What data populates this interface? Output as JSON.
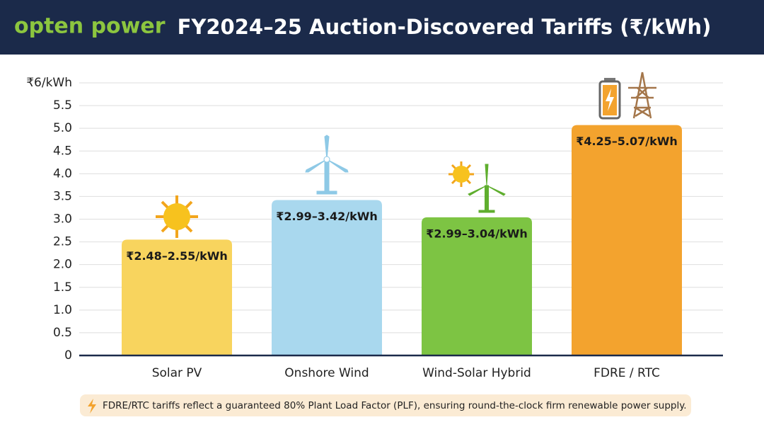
{
  "header": {
    "logo": "opten power"
  },
  "chart_data": {
    "type": "bar",
    "title": "FY2024–25 Auction-Discovered Tariffs (₹/kWh)",
    "categories": [
      "Solar PV",
      "Onshore Wind",
      "Wind-Solar Hybrid",
      "FDRE / RTC"
    ],
    "values": [
      2.55,
      3.42,
      3.04,
      5.07
    ],
    "value_labels": [
      "₹2.48–2.55/kWh",
      "₹2.99–3.42/kWh",
      "₹2.99–3.04/kWh",
      "₹4.25–5.07/kWh"
    ],
    "colors": [
      "#f8d45e",
      "#a9d8ee",
      "#7dc443",
      "#f3a32e"
    ],
    "ylim": [
      0,
      6
    ],
    "yticks": [
      0,
      0.5,
      {
        "value": 1,
        "label": "1.0"
      },
      1.5,
      {
        "value": 2,
        "label": "2.0"
      },
      2.5,
      {
        "value": 3,
        "label": "3.0"
      },
      3.5,
      {
        "value": 4,
        "label": "4.0"
      },
      4.5,
      {
        "value": 5,
        "label": "5.0"
      },
      5.5,
      {
        "value": 6,
        "label": "₹6/kWh"
      }
    ],
    "grid": true,
    "footnote": "FDRE/RTC tariffs reflect a guaranteed 80% Plant Load Factor (PLF), ensuring round-the-clock firm renewable power supply."
  }
}
